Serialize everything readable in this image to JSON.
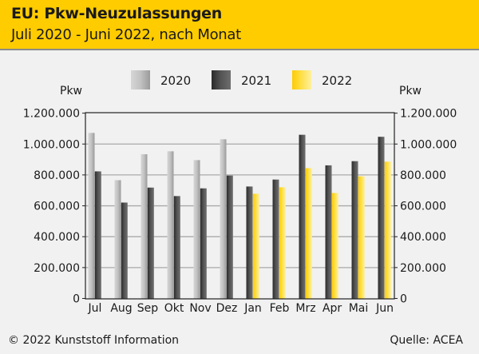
{
  "header": {
    "title": "EU: Pkw-Neuzulassungen",
    "subtitle": "Juli 2020 - Juni 2022, nach Monat"
  },
  "footer": {
    "copyright": "© 2022 Kunststoff Information",
    "source": "Quelle: ACEA"
  },
  "chart_data": {
    "type": "bar",
    "title": "EU: Pkw-Neuzulassungen",
    "subtitle": "Juli 2020 - Juni 2022, nach Monat",
    "ylabel": "Pkw",
    "ylabel_right": "Pkw",
    "ylim": [
      0,
      1200000
    ],
    "yticks": [
      0,
      200000,
      400000,
      600000,
      800000,
      1000000,
      1200000
    ],
    "ytick_labels": [
      "0",
      "200.000",
      "400.000",
      "600.000",
      "800.000",
      "1.000.000",
      "1.200.000"
    ],
    "grid": true,
    "legend_position": "top-center",
    "categories": [
      "Jul",
      "Aug",
      "Sep",
      "Okt",
      "Nov",
      "Dez",
      "Jan",
      "Feb",
      "Mrz",
      "Apr",
      "Mai",
      "Jun"
    ],
    "series": [
      {
        "name": "2020",
        "color": "#b8b8b8",
        "values": [
          1072000,
          766000,
          934000,
          953000,
          896000,
          1031000,
          null,
          null,
          null,
          null,
          null,
          null
        ]
      },
      {
        "name": "2021",
        "color": "#4a4a4a",
        "values": [
          823000,
          621000,
          718000,
          663000,
          713000,
          796000,
          725000,
          770000,
          1060000,
          862000,
          889000,
          1047000
        ]
      },
      {
        "name": "2022",
        "color": "#ffd21a",
        "values": [
          null,
          null,
          null,
          null,
          null,
          null,
          678000,
          720000,
          844000,
          683000,
          791000,
          886000
        ]
      }
    ]
  }
}
